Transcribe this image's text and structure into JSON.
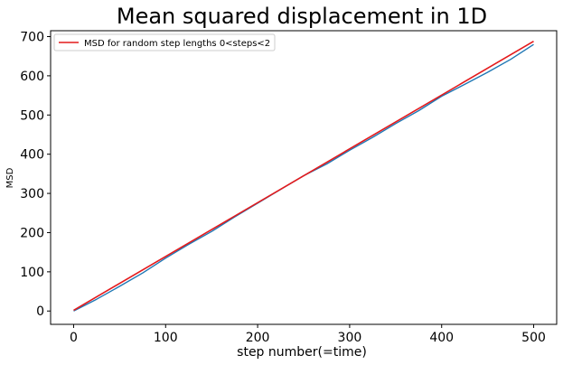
{
  "chart_data": {
    "type": "line",
    "title": "Mean squared displacement in 1D",
    "xlabel": "step number(=time)",
    "ylabel": "MSD",
    "xlim": [
      -25,
      525
    ],
    "ylim": [
      -34,
      715
    ],
    "x_ticks": [
      0,
      100,
      200,
      300,
      400,
      500
    ],
    "y_ticks": [
      0,
      100,
      200,
      300,
      400,
      500,
      600,
      700
    ],
    "grid": false,
    "legend_position": "top-left",
    "colors": {
      "measured": "#1f77b4",
      "fit": "#e41a1c"
    },
    "series": [
      {
        "role": "measured",
        "x": [
          0,
          25,
          50,
          75,
          100,
          125,
          150,
          175,
          200,
          225,
          250,
          275,
          300,
          325,
          350,
          375,
          400,
          425,
          450,
          475,
          500
        ],
        "y": [
          0,
          30,
          63,
          97,
          135,
          170,
          203,
          240,
          275,
          310,
          345,
          375,
          410,
          443,
          478,
          511,
          548,
          578,
          609,
          642,
          680
        ]
      },
      {
        "name": "MSD for random step lengths  0<steps<2",
        "role": "fit",
        "x": [
          0,
          500
        ],
        "y": [
          2,
          688
        ]
      }
    ]
  }
}
